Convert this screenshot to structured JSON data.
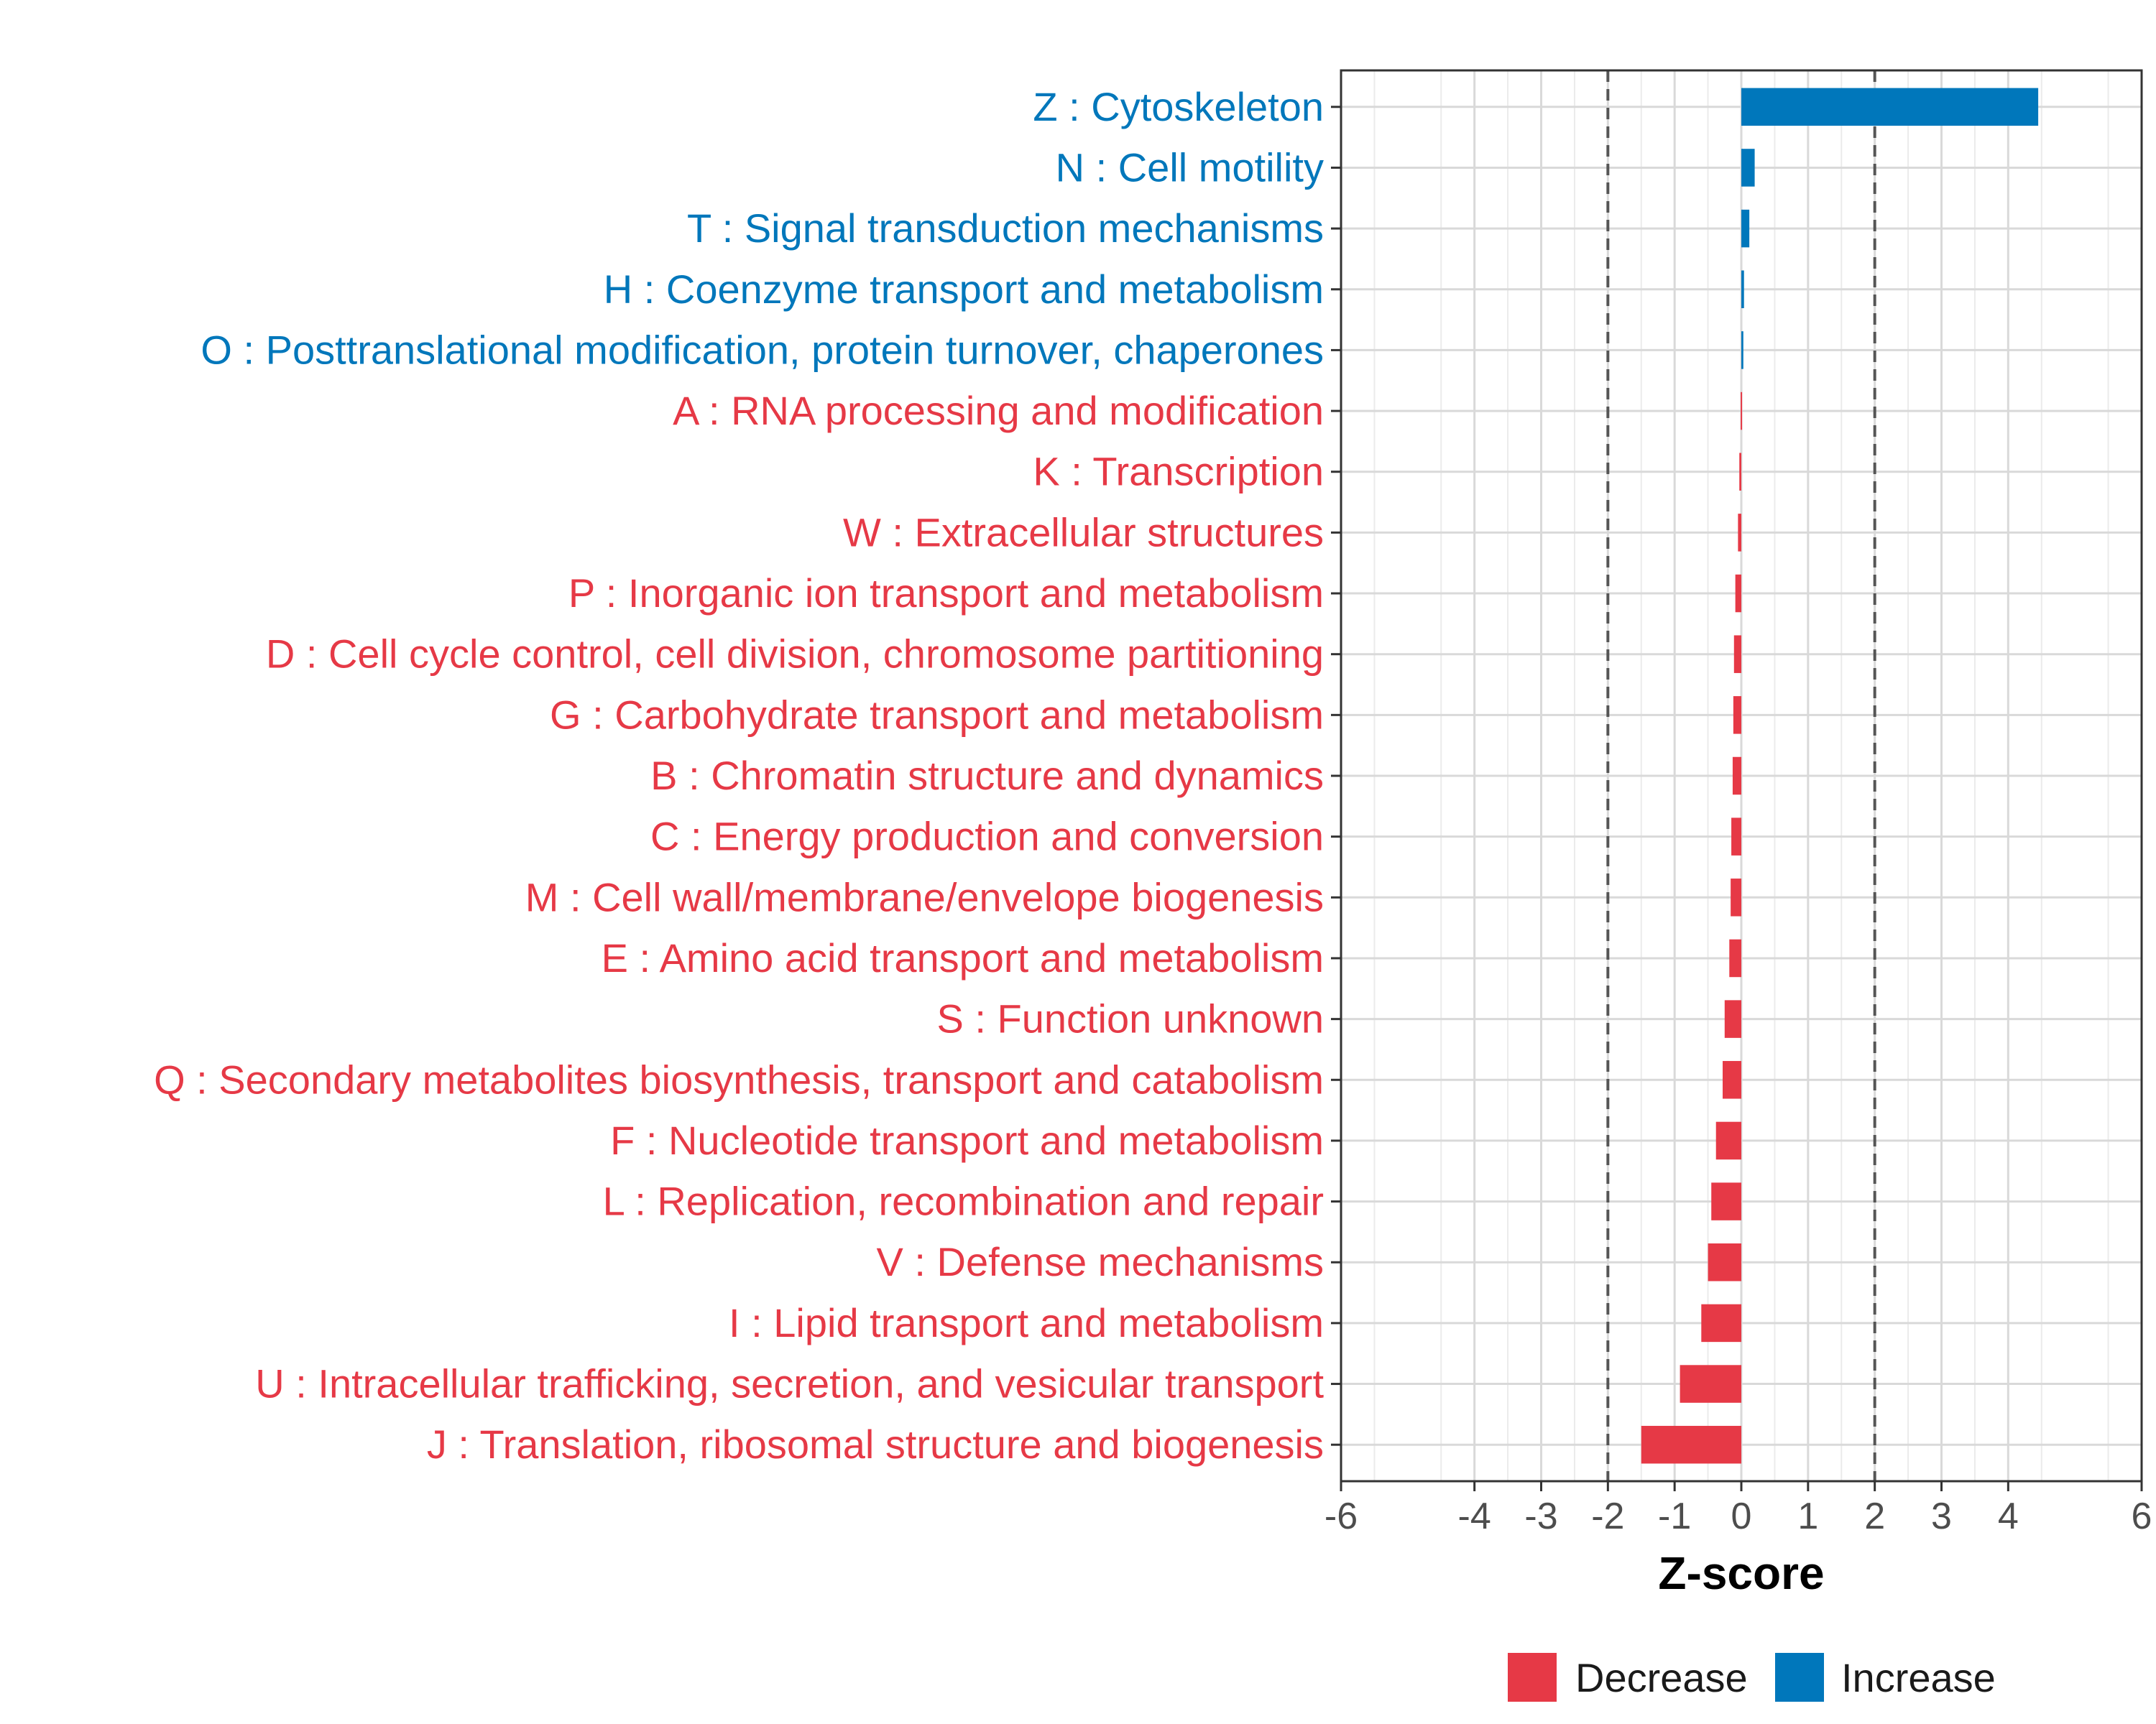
{
  "chart_data": {
    "type": "bar",
    "orientation": "horizontal",
    "title": "",
    "xlabel": "Z-score",
    "ylabel": "",
    "xlim": [
      -6,
      6
    ],
    "xticks": [
      -6,
      -4,
      -3,
      -2,
      -1,
      0,
      1,
      2,
      3,
      4,
      6
    ],
    "reference_lines": [
      -2,
      2
    ],
    "grid": true,
    "legend_position": "bottom",
    "colors": {
      "Decrease": "#e63946",
      "Increase": "#0077bb"
    },
    "categories": [
      "Z : Cytoskeleton",
      "N : Cell motility",
      "T : Signal transduction mechanisms",
      "H : Coenzyme transport and metabolism",
      "O : Posttranslational modification, protein turnover, chaperones",
      "A : RNA processing and modification",
      "K : Transcription",
      "W : Extracellular structures",
      "P : Inorganic ion transport and metabolism",
      "D : Cell cycle control, cell division, chromosome partitioning",
      "G : Carbohydrate transport and metabolism",
      "B : Chromatin structure and dynamics",
      "C : Energy production and conversion",
      "M : Cell wall/membrane/envelope biogenesis",
      "E : Amino acid transport and metabolism",
      "S : Function unknown",
      "Q : Secondary metabolites biosynthesis, transport and catabolism",
      "F : Nucleotide transport and metabolism",
      "L : Replication, recombination and repair",
      "V : Defense mechanisms",
      "I : Lipid transport and metabolism",
      "U : Intracellular trafficking, secretion, and vesicular transport",
      "J : Translation, ribosomal structure and biogenesis"
    ],
    "values": [
      4.45,
      0.2,
      0.12,
      0.04,
      0.03,
      -0.01,
      -0.03,
      -0.05,
      -0.09,
      -0.11,
      -0.12,
      -0.13,
      -0.15,
      -0.16,
      -0.18,
      -0.25,
      -0.28,
      -0.38,
      -0.45,
      -0.5,
      -0.6,
      -0.92,
      -1.5
    ],
    "groups": [
      "Increase",
      "Increase",
      "Increase",
      "Increase",
      "Increase",
      "Decrease",
      "Decrease",
      "Decrease",
      "Decrease",
      "Decrease",
      "Decrease",
      "Decrease",
      "Decrease",
      "Decrease",
      "Decrease",
      "Decrease",
      "Decrease",
      "Decrease",
      "Decrease",
      "Decrease",
      "Decrease",
      "Decrease",
      "Decrease"
    ]
  },
  "legend": {
    "items": [
      {
        "label": "Decrease"
      },
      {
        "label": "Increase"
      }
    ]
  }
}
